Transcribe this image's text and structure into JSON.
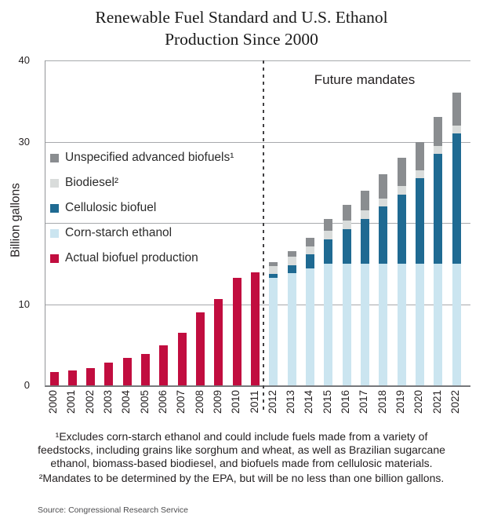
{
  "header": {
    "line1": "Renewable Fuel Standard and U.S. Ethanol",
    "line2": "Production Since 2000"
  },
  "chart_data": {
    "type": "bar",
    "stacked": true,
    "title": "Renewable Fuel Standard and U.S. Ethanol Production Since 2000",
    "xlabel": "",
    "ylabel": "Billion gallons",
    "ylim": [
      0,
      40
    ],
    "grid": true,
    "gridlines": [
      10,
      20,
      30,
      40
    ],
    "ytick_labels": [
      {
        "value": 0,
        "label": "0"
      },
      {
        "value": 10,
        "label": "10"
      },
      {
        "value": 30,
        "label": "30"
      },
      {
        "value": 40,
        "label": "40"
      }
    ],
    "annotation": "Future mandates",
    "future_divider_between": [
      "2011",
      "2012"
    ],
    "legend_position": "left-middle",
    "categories": [
      "2000",
      "2001",
      "2002",
      "2003",
      "2004",
      "2005",
      "2006",
      "2007",
      "2008",
      "2009",
      "2010",
      "2011",
      "2012",
      "2013",
      "2014",
      "2015",
      "2016",
      "2017",
      "2018",
      "2019",
      "2020",
      "2021",
      "2022"
    ],
    "series": [
      {
        "name": "Actual biofuel production",
        "color": "#C10D3F",
        "values": [
          1.6,
          1.8,
          2.1,
          2.8,
          3.4,
          3.9,
          4.9,
          6.5,
          9.0,
          10.6,
          13.2,
          13.9,
          0,
          0,
          0,
          0,
          0,
          0,
          0,
          0,
          0,
          0,
          0
        ]
      },
      {
        "name": "Corn-starch ethanol",
        "color": "#CBE5F0",
        "values": [
          0,
          0,
          0,
          0,
          0,
          0,
          0,
          0,
          0,
          0,
          0,
          0,
          13.2,
          13.8,
          14.4,
          15,
          15,
          15,
          15,
          15,
          15,
          15,
          15
        ]
      },
      {
        "name": "Cellulosic biofuel",
        "color": "#1F6A92",
        "values": [
          0,
          0,
          0,
          0,
          0,
          0,
          0,
          0,
          0,
          0,
          0,
          0,
          0.5,
          1,
          1.75,
          3,
          4.25,
          5.5,
          7,
          8.5,
          10.5,
          13.5,
          16
        ]
      },
      {
        "name": "Biodiesel",
        "color": "#D9DCDB",
        "values": [
          0,
          0,
          0,
          0,
          0,
          0,
          0,
          0,
          0,
          0,
          0,
          0,
          1,
          1,
          1,
          1,
          1,
          1,
          1,
          1,
          1,
          1,
          1
        ]
      },
      {
        "name": "Unspecified advanced biofuels",
        "color": "#8A8D90",
        "values": [
          0,
          0,
          0,
          0,
          0,
          0,
          0,
          0,
          0,
          0,
          0,
          0,
          0.5,
          0.75,
          1,
          1.5,
          2,
          2.5,
          3,
          3.5,
          3.5,
          3.5,
          4
        ]
      }
    ]
  },
  "legend": {
    "items": [
      {
        "label": "Unspecified advanced biofuels¹",
        "color": "#8A8D90"
      },
      {
        "label": "Biodiesel²",
        "color": "#D9DCDB"
      },
      {
        "label": "Cellulosic biofuel",
        "color": "#1F6A92"
      },
      {
        "label": "Corn-starch ethanol",
        "color": "#CBE5F0"
      },
      {
        "label": "Actual biofuel production",
        "color": "#C10D3F"
      }
    ]
  },
  "footnotes": {
    "note1_lines": [
      "¹Excludes corn-starch ethanol and could include fuels made from a variety of",
      "feedstocks, including grains like sorghum and wheat, as well as Brazilian sugarcane",
      "ethanol, biomass-based biodiesel, and biofuels made from cellulosic materials."
    ],
    "note2": "²Mandates to be determined by the EPA, but will be no less than one billion gallons."
  },
  "source": "Source: Congressional Research Service"
}
